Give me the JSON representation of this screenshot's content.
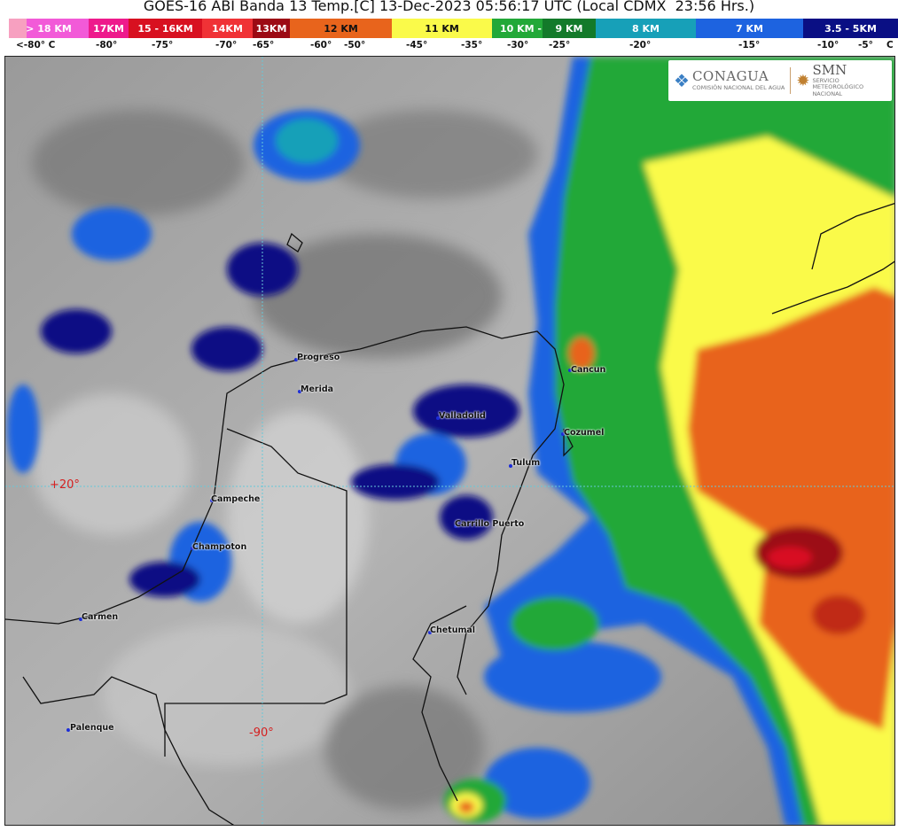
{
  "title": "GOES-16 ABI Banda 13 Temp.[C] 13-Dec-2023 05:56:17 UTC (Local CDMX  23:56 Hrs.)",
  "legend": {
    "bands": [
      {
        "label": "> 18 KM",
        "color": "#f25ad8"
      },
      {
        "label": "17KM",
        "color": "#ee1a8c"
      },
      {
        "label": "15 - 16KM",
        "color": "#d81020"
      },
      {
        "label": "14KM",
        "color": "#f03236"
      },
      {
        "label": "13KM",
        "color": "#9c0a14"
      },
      {
        "label": "12 KM",
        "color": "#e8641c"
      },
      {
        "label": "11 KM",
        "color": "#fafa4a"
      },
      {
        "label": "10 KM -",
        "color": "#22a838"
      },
      {
        "label": "9 KM",
        "color": "#137a2a"
      },
      {
        "label": "8 KM",
        "color": "#17a0b8"
      },
      {
        "label": "7 KM",
        "color": "#1d63e0"
      },
      {
        "label": "3.5 - 5KM",
        "color": "#0a0f84"
      }
    ],
    "temps": [
      "<-80° C",
      "-80°",
      "-75°",
      "-70°",
      "-65°",
      "-60°",
      "-50°",
      "-45°",
      "-35°",
      "-30°",
      "-25°",
      "-20°",
      "-15°",
      "-10°",
      "-5°",
      "C"
    ]
  },
  "logos": {
    "conagua": "CONAGUA",
    "conagua_sub": "COMISIÓN NACIONAL DEL AGUA",
    "smn": "SMN",
    "smn_sub": "SERVICIO METEOROLÓGICO NACIONAL"
  },
  "grid": {
    "lat_label": "+20°",
    "lon_label": "-90°"
  },
  "cities": [
    "Progreso",
    "Merida",
    "Valladolid",
    "Cancun",
    "Cozumel",
    "Tulum",
    "Campeche",
    "Carrillo Puerto",
    "Champoton",
    "Carmen",
    "Chetumal",
    "Palenque"
  ]
}
